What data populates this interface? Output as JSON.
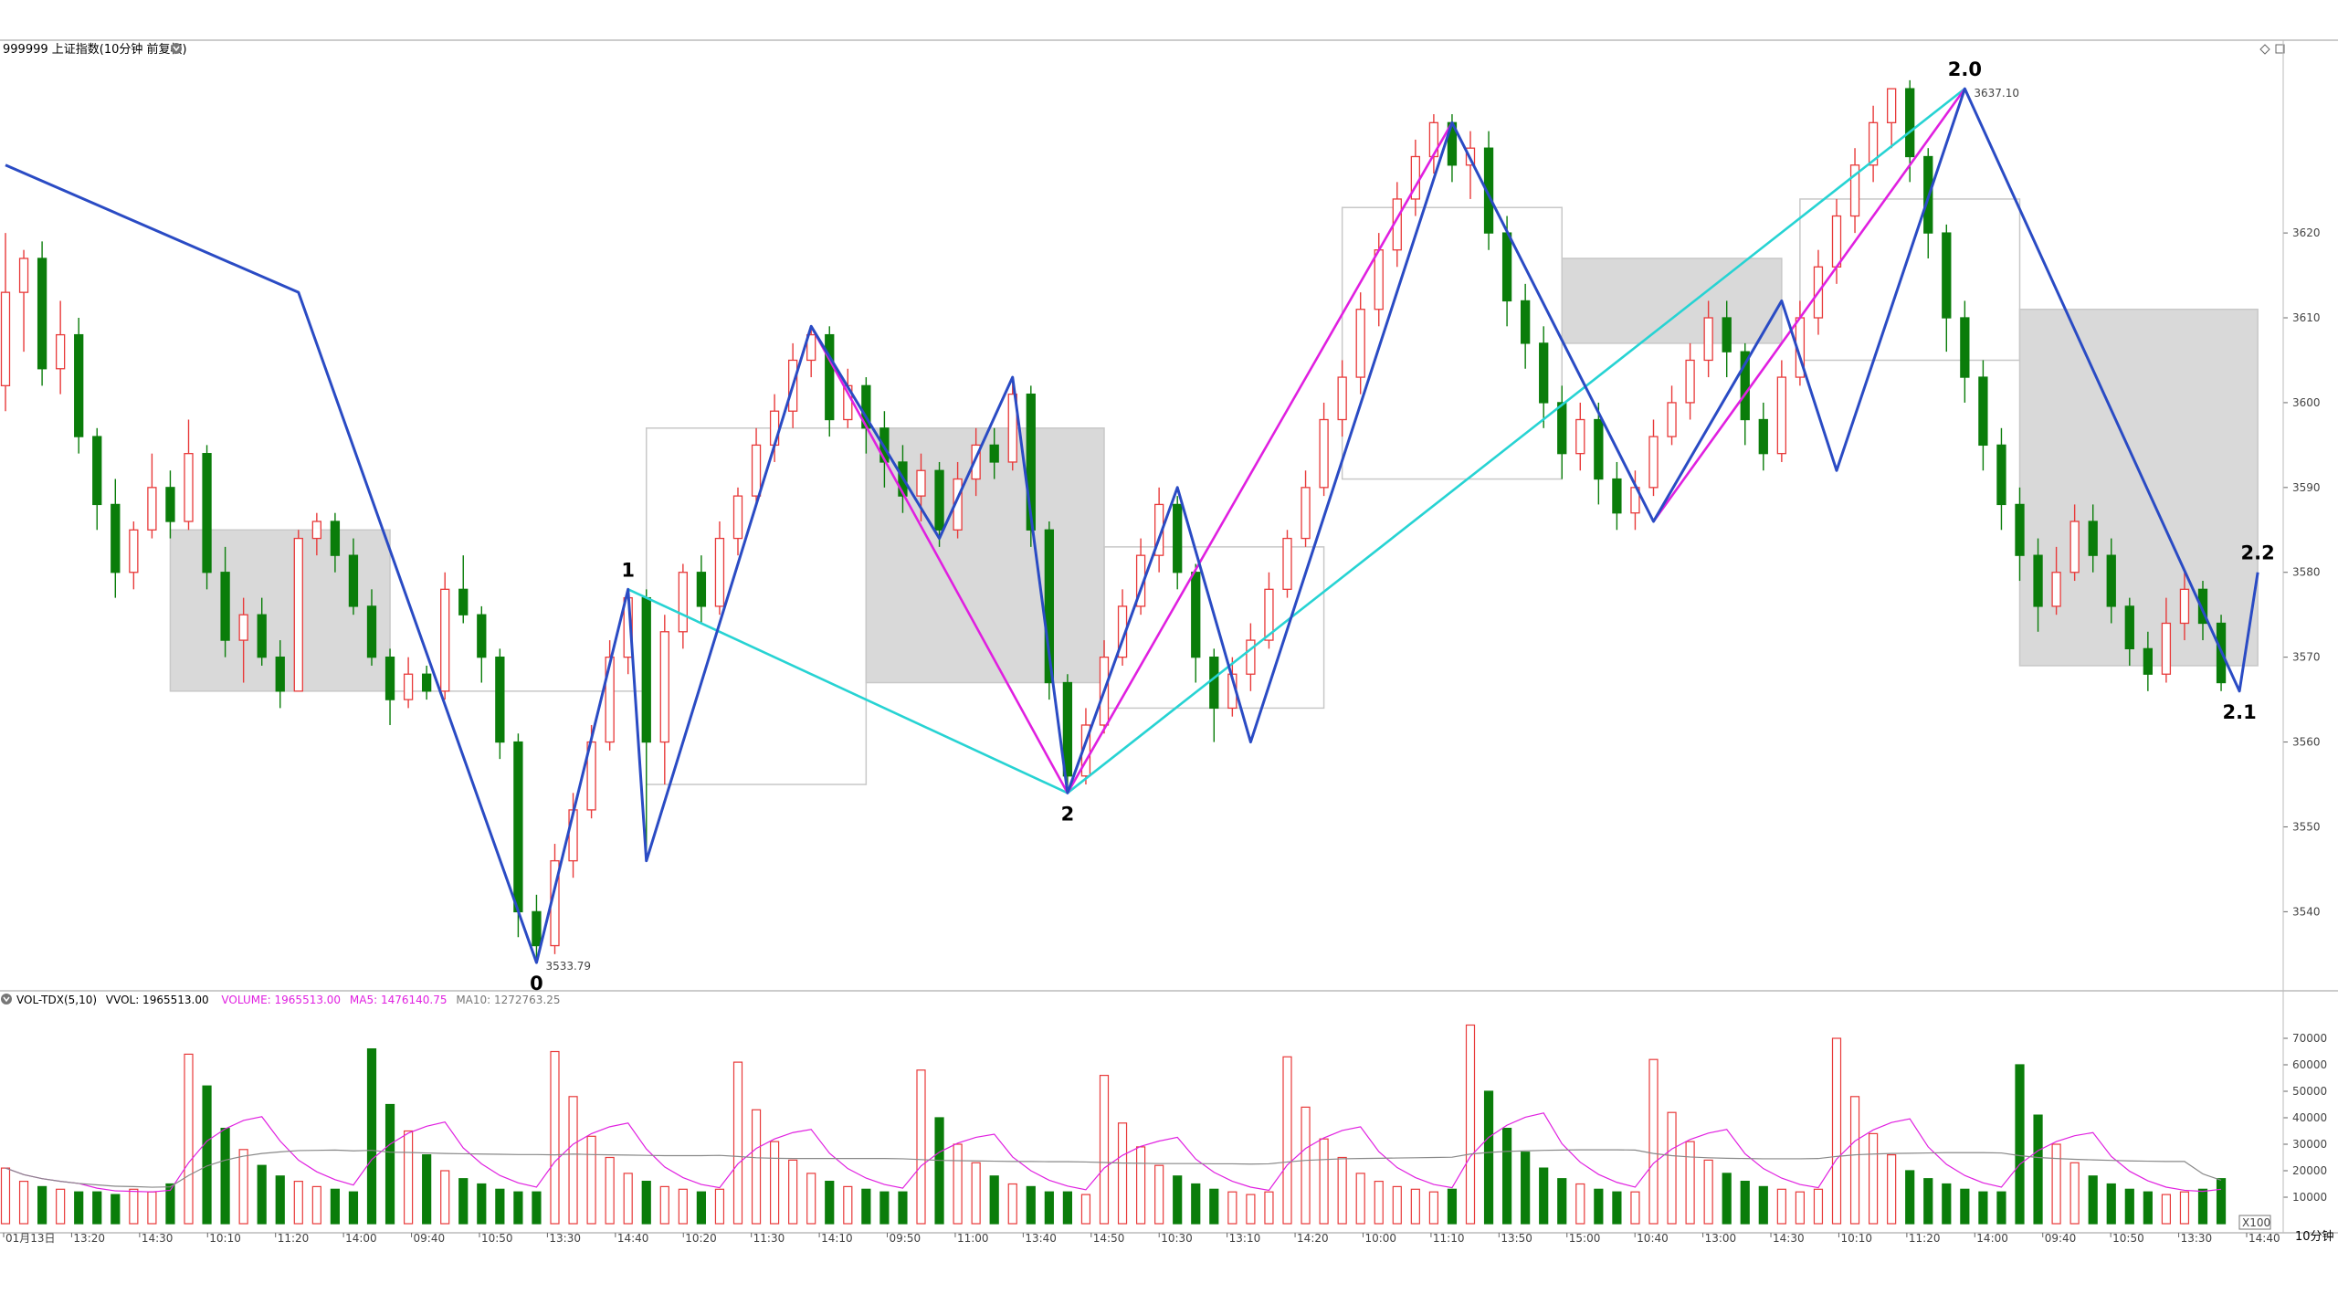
{
  "header": {
    "title": "999999 上证指数(10分钟 前复权)",
    "max_label": "3637.10",
    "min_label": "3533.79"
  },
  "volume_header": {
    "indicator": "VOL-TDX(5,10)",
    "vvol": "VVOL: 1965513.00",
    "volume": "VOLUME: 1965513.00",
    "ma5": "MA5: 1476140.75",
    "ma10": "MA10: 1272763.25"
  },
  "period_label": "10分钟",
  "x100_label": "X100",
  "wave_labels": [
    "0",
    "1",
    "2",
    "2.0",
    "2.1",
    "2.2"
  ],
  "colors": {
    "up": "#e83a3a",
    "down": "#0a7d0a",
    "zigzag": "#2a4bc4",
    "magenta": "#e020e0",
    "cyan": "#27d3d3",
    "box_fill": "#d9d9d9",
    "box_stroke": "#c8c8c8",
    "ma5": "#e020e0",
    "ma10": "#888888"
  },
  "chart_data": {
    "type": "candlestick",
    "title": "999999 上证指数(10分钟 前复权)",
    "price_axis": {
      "ticks": [
        3540,
        3550,
        3560,
        3570,
        3580,
        3590,
        3600,
        3610,
        3620
      ],
      "range": [
        3531,
        3641
      ],
      "side": "right"
    },
    "volume_axis": {
      "ticks": [
        10000,
        20000,
        30000,
        40000,
        50000,
        60000,
        70000
      ],
      "range": [
        0,
        80000
      ],
      "unit": "X100"
    },
    "time_labels": [
      "01月13日",
      "13:20",
      "14:30",
      "10:10",
      "11:20",
      "14:00",
      "09:40",
      "10:50",
      "13:30",
      "14:40",
      "10:20",
      "11:30",
      "14:10",
      "09:50",
      "11:00",
      "13:40",
      "14:50",
      "10:30",
      "13:10",
      "14:20",
      "10:00",
      "11:10",
      "13:50",
      "15:00",
      "10:40",
      "13:00",
      "14:30",
      "10:10",
      "11:20",
      "14:00",
      "09:40",
      "10:50",
      "13:30",
      "14:40"
    ],
    "price_extremes": {
      "high": 3637.1,
      "low": 3533.79
    },
    "zigzag": [
      {
        "bar": 0,
        "price": 3628
      },
      {
        "bar": 16,
        "price": 3613
      },
      {
        "bar": 29,
        "price": 3534
      },
      {
        "bar": 34,
        "price": 3578
      },
      {
        "bar": 35,
        "price": 3546
      },
      {
        "bar": 44,
        "price": 3609
      },
      {
        "bar": 51,
        "price": 3584
      },
      {
        "bar": 55,
        "price": 3603
      },
      {
        "bar": 58,
        "price": 3554
      },
      {
        "bar": 64,
        "price": 3590
      },
      {
        "bar": 68,
        "price": 3560
      },
      {
        "bar": 79,
        "price": 3633
      },
      {
        "bar": 90,
        "price": 3586
      },
      {
        "bar": 97,
        "price": 3612
      },
      {
        "bar": 100,
        "price": 3592
      },
      {
        "bar": 107,
        "price": 3637
      },
      {
        "bar": 122,
        "price": 3566
      },
      {
        "bar": 123,
        "price": 3580
      }
    ],
    "magenta_segments": [
      [
        {
          "bar": 44,
          "price": 3609
        },
        {
          "bar": 58,
          "price": 3554
        },
        {
          "bar": 79,
          "price": 3633
        }
      ],
      [
        {
          "bar": 90,
          "price": 3586
        },
        {
          "bar": 107,
          "price": 3637
        }
      ]
    ],
    "cyan_segments": [
      [
        {
          "bar": 34,
          "price": 3578
        },
        {
          "bar": 58,
          "price": 3554
        },
        {
          "bar": 107,
          "price": 3637
        }
      ]
    ],
    "wave_points": [
      {
        "label": "0",
        "bar": 29,
        "price": 3534,
        "pos": "below"
      },
      {
        "label": "1",
        "bar": 34,
        "price": 3578,
        "pos": "above"
      },
      {
        "label": "2",
        "bar": 58,
        "price": 3554,
        "pos": "below"
      },
      {
        "label": "2.0",
        "bar": 107,
        "price": 3637,
        "pos": "above"
      },
      {
        "label": "2.1",
        "bar": 122,
        "price": 3566,
        "pos": "below"
      },
      {
        "label": "2.2",
        "bar": 123,
        "price": 3580,
        "pos": "above"
      }
    ],
    "consolidation_boxes": [
      {
        "from_bar": 9,
        "to_bar": 21,
        "top": 3585,
        "bottom": 3566,
        "filled": true
      },
      {
        "from_bar": 21,
        "to_bar": 35,
        "top": 3566,
        "bottom": 3566,
        "filled": false
      },
      {
        "from_bar": 35,
        "to_bar": 47,
        "top": 3597,
        "bottom": 3555,
        "filled": false
      },
      {
        "from_bar": 47,
        "to_bar": 60,
        "top": 3597,
        "bottom": 3567,
        "filled": true
      },
      {
        "from_bar": 60,
        "to_bar": 72,
        "top": 3583,
        "bottom": 3564,
        "filled": false
      },
      {
        "from_bar": 73,
        "to_bar": 85,
        "top": 3623,
        "bottom": 3591,
        "filled": false
      },
      {
        "from_bar": 85,
        "to_bar": 97,
        "top": 3617,
        "bottom": 3607,
        "filled": true
      },
      {
        "from_bar": 98,
        "to_bar": 110,
        "top": 3624,
        "bottom": 3605,
        "filled": false
      },
      {
        "from_bar": 110,
        "to_bar": 123,
        "top": 3611,
        "bottom": 3569,
        "filled": true
      }
    ],
    "candles": [
      [
        3602,
        3613,
        3620,
        3599
      ],
      [
        3613,
        3617,
        3618,
        3606
      ],
      [
        3617,
        3604,
        3619,
        3602
      ],
      [
        3604,
        3608,
        3612,
        3601
      ],
      [
        3608,
        3596,
        3610,
        3594
      ],
      [
        3596,
        3588,
        3597,
        3585
      ],
      [
        3588,
        3580,
        3591,
        3577
      ],
      [
        3580,
        3585,
        3586,
        3578
      ],
      [
        3585,
        3590,
        3594,
        3584
      ],
      [
        3590,
        3586,
        3592,
        3584
      ],
      [
        3586,
        3594,
        3598,
        3585
      ],
      [
        3594,
        3580,
        3595,
        3578
      ],
      [
        3580,
        3572,
        3583,
        3570
      ],
      [
        3572,
        3575,
        3577,
        3567
      ],
      [
        3575,
        3570,
        3577,
        3569
      ],
      [
        3570,
        3566,
        3572,
        3564
      ],
      [
        3566,
        3584,
        3585,
        3566
      ],
      [
        3584,
        3586,
        3587,
        3582
      ],
      [
        3586,
        3582,
        3587,
        3580
      ],
      [
        3582,
        3576,
        3584,
        3575
      ],
      [
        3576,
        3570,
        3578,
        3569
      ],
      [
        3570,
        3565,
        3571,
        3562
      ],
      [
        3565,
        3568,
        3570,
        3564
      ],
      [
        3568,
        3566,
        3569,
        3565
      ],
      [
        3566,
        3578,
        3580,
        3565
      ],
      [
        3578,
        3575,
        3582,
        3574
      ],
      [
        3575,
        3570,
        3576,
        3567
      ],
      [
        3570,
        3560,
        3571,
        3558
      ],
      [
        3560,
        3540,
        3561,
        3537
      ],
      [
        3540,
        3536,
        3542,
        3534
      ],
      [
        3536,
        3546,
        3548,
        3535
      ],
      [
        3546,
        3552,
        3554,
        3544
      ],
      [
        3552,
        3560,
        3562,
        3551
      ],
      [
        3560,
        3570,
        3572,
        3559
      ],
      [
        3570,
        3577,
        3578,
        3568
      ],
      [
        3577,
        3560,
        3578,
        3546
      ],
      [
        3560,
        3573,
        3575,
        3555
      ],
      [
        3573,
        3580,
        3581,
        3571
      ],
      [
        3580,
        3576,
        3582,
        3574
      ],
      [
        3576,
        3584,
        3586,
        3575
      ],
      [
        3584,
        3589,
        3590,
        3582
      ],
      [
        3589,
        3595,
        3597,
        3588
      ],
      [
        3595,
        3599,
        3601,
        3593
      ],
      [
        3599,
        3605,
        3607,
        3597
      ],
      [
        3605,
        3608,
        3609,
        3603
      ],
      [
        3608,
        3598,
        3609,
        3596
      ],
      [
        3598,
        3602,
        3604,
        3597
      ],
      [
        3602,
        3597,
        3603,
        3594
      ],
      [
        3597,
        3593,
        3599,
        3590
      ],
      [
        3593,
        3589,
        3595,
        3587
      ],
      [
        3589,
        3592,
        3594,
        3586
      ],
      [
        3592,
        3585,
        3593,
        3583
      ],
      [
        3585,
        3591,
        3593,
        3584
      ],
      [
        3591,
        3595,
        3597,
        3589
      ],
      [
        3595,
        3593,
        3597,
        3591
      ],
      [
        3593,
        3601,
        3603,
        3592
      ],
      [
        3601,
        3585,
        3602,
        3583
      ],
      [
        3585,
        3567,
        3586,
        3565
      ],
      [
        3567,
        3556,
        3568,
        3554
      ],
      [
        3556,
        3562,
        3564,
        3555
      ],
      [
        3562,
        3570,
        3572,
        3561
      ],
      [
        3570,
        3576,
        3578,
        3569
      ],
      [
        3576,
        3582,
        3584,
        3575
      ],
      [
        3582,
        3588,
        3590,
        3580
      ],
      [
        3588,
        3580,
        3589,
        3578
      ],
      [
        3580,
        3570,
        3581,
        3567
      ],
      [
        3570,
        3564,
        3571,
        3560
      ],
      [
        3564,
        3568,
        3570,
        3563
      ],
      [
        3568,
        3572,
        3574,
        3566
      ],
      [
        3572,
        3578,
        3580,
        3571
      ],
      [
        3578,
        3584,
        3585,
        3577
      ],
      [
        3584,
        3590,
        3592,
        3583
      ],
      [
        3590,
        3598,
        3600,
        3589
      ],
      [
        3598,
        3603,
        3605,
        3596
      ],
      [
        3603,
        3611,
        3613,
        3601
      ],
      [
        3611,
        3618,
        3620,
        3609
      ],
      [
        3618,
        3624,
        3626,
        3616
      ],
      [
        3624,
        3629,
        3631,
        3622
      ],
      [
        3629,
        3633,
        3634,
        3627
      ],
      [
        3633,
        3628,
        3634,
        3626
      ],
      [
        3628,
        3630,
        3632,
        3624
      ],
      [
        3630,
        3620,
        3632,
        3618
      ],
      [
        3620,
        3612,
        3622,
        3609
      ],
      [
        3612,
        3607,
        3614,
        3604
      ],
      [
        3607,
        3600,
        3609,
        3597
      ],
      [
        3600,
        3594,
        3602,
        3591
      ],
      [
        3594,
        3598,
        3600,
        3592
      ],
      [
        3598,
        3591,
        3600,
        3588
      ],
      [
        3591,
        3587,
        3593,
        3585
      ],
      [
        3587,
        3590,
        3592,
        3585
      ],
      [
        3590,
        3596,
        3598,
        3589
      ],
      [
        3596,
        3600,
        3602,
        3595
      ],
      [
        3600,
        3605,
        3607,
        3598
      ],
      [
        3605,
        3610,
        3612,
        3603
      ],
      [
        3610,
        3606,
        3612,
        3603
      ],
      [
        3606,
        3598,
        3607,
        3595
      ],
      [
        3598,
        3594,
        3600,
        3592
      ],
      [
        3594,
        3603,
        3605,
        3593
      ],
      [
        3603,
        3610,
        3612,
        3602
      ],
      [
        3610,
        3616,
        3618,
        3608
      ],
      [
        3616,
        3622,
        3624,
        3614
      ],
      [
        3622,
        3628,
        3630,
        3620
      ],
      [
        3628,
        3633,
        3635,
        3626
      ],
      [
        3633,
        3637,
        3637,
        3630
      ],
      [
        3637,
        3629,
        3638,
        3626
      ],
      [
        3629,
        3620,
        3630,
        3617
      ],
      [
        3620,
        3610,
        3621,
        3606
      ],
      [
        3610,
        3603,
        3612,
        3600
      ],
      [
        3603,
        3595,
        3605,
        3592
      ],
      [
        3595,
        3588,
        3597,
        3585
      ],
      [
        3588,
        3582,
        3590,
        3579
      ],
      [
        3582,
        3576,
        3584,
        3573
      ],
      [
        3576,
        3580,
        3583,
        3575
      ],
      [
        3580,
        3586,
        3588,
        3579
      ],
      [
        3586,
        3582,
        3588,
        3580
      ],
      [
        3582,
        3576,
        3584,
        3574
      ],
      [
        3576,
        3571,
        3577,
        3569
      ],
      [
        3571,
        3568,
        3573,
        3566
      ],
      [
        3568,
        3574,
        3577,
        3567
      ],
      [
        3574,
        3578,
        3580,
        3572
      ],
      [
        3578,
        3574,
        3579,
        3572
      ],
      [
        3574,
        3567,
        3575,
        3566
      ]
    ],
    "volume": [
      21000,
      16000,
      14000,
      13000,
      12000,
      12000,
      11000,
      13000,
      12000,
      15000,
      64000,
      52000,
      36000,
      28000,
      22000,
      18000,
      16000,
      14000,
      13000,
      12000,
      66000,
      45000,
      35000,
      26000,
      20000,
      17000,
      15000,
      13000,
      12000,
      12000,
      65000,
      48000,
      33000,
      25000,
      19000,
      16000,
      14000,
      13000,
      12000,
      13000,
      61000,
      43000,
      31000,
      24000,
      19000,
      16000,
      14000,
      13000,
      12000,
      12000,
      58000,
      40000,
      30000,
      23000,
      18000,
      15000,
      14000,
      12000,
      12000,
      11000,
      56000,
      38000,
      29000,
      22000,
      18000,
      15000,
      13000,
      12000,
      11000,
      12000,
      63000,
      44000,
      32000,
      25000,
      19000,
      16000,
      14000,
      13000,
      12000,
      13000,
      75000,
      50000,
      36000,
      27000,
      21000,
      17000,
      15000,
      13000,
      12000,
      12000,
      62000,
      42000,
      31000,
      24000,
      19000,
      16000,
      14000,
      13000,
      12000,
      13000,
      70000,
      48000,
      34000,
      26000,
      20000,
      17000,
      15000,
      13000,
      12000,
      12000,
      60000,
      41000,
      30000,
      23000,
      18000,
      15000,
      13000,
      12000,
      11000,
      12000,
      13000,
      17000
    ]
  }
}
